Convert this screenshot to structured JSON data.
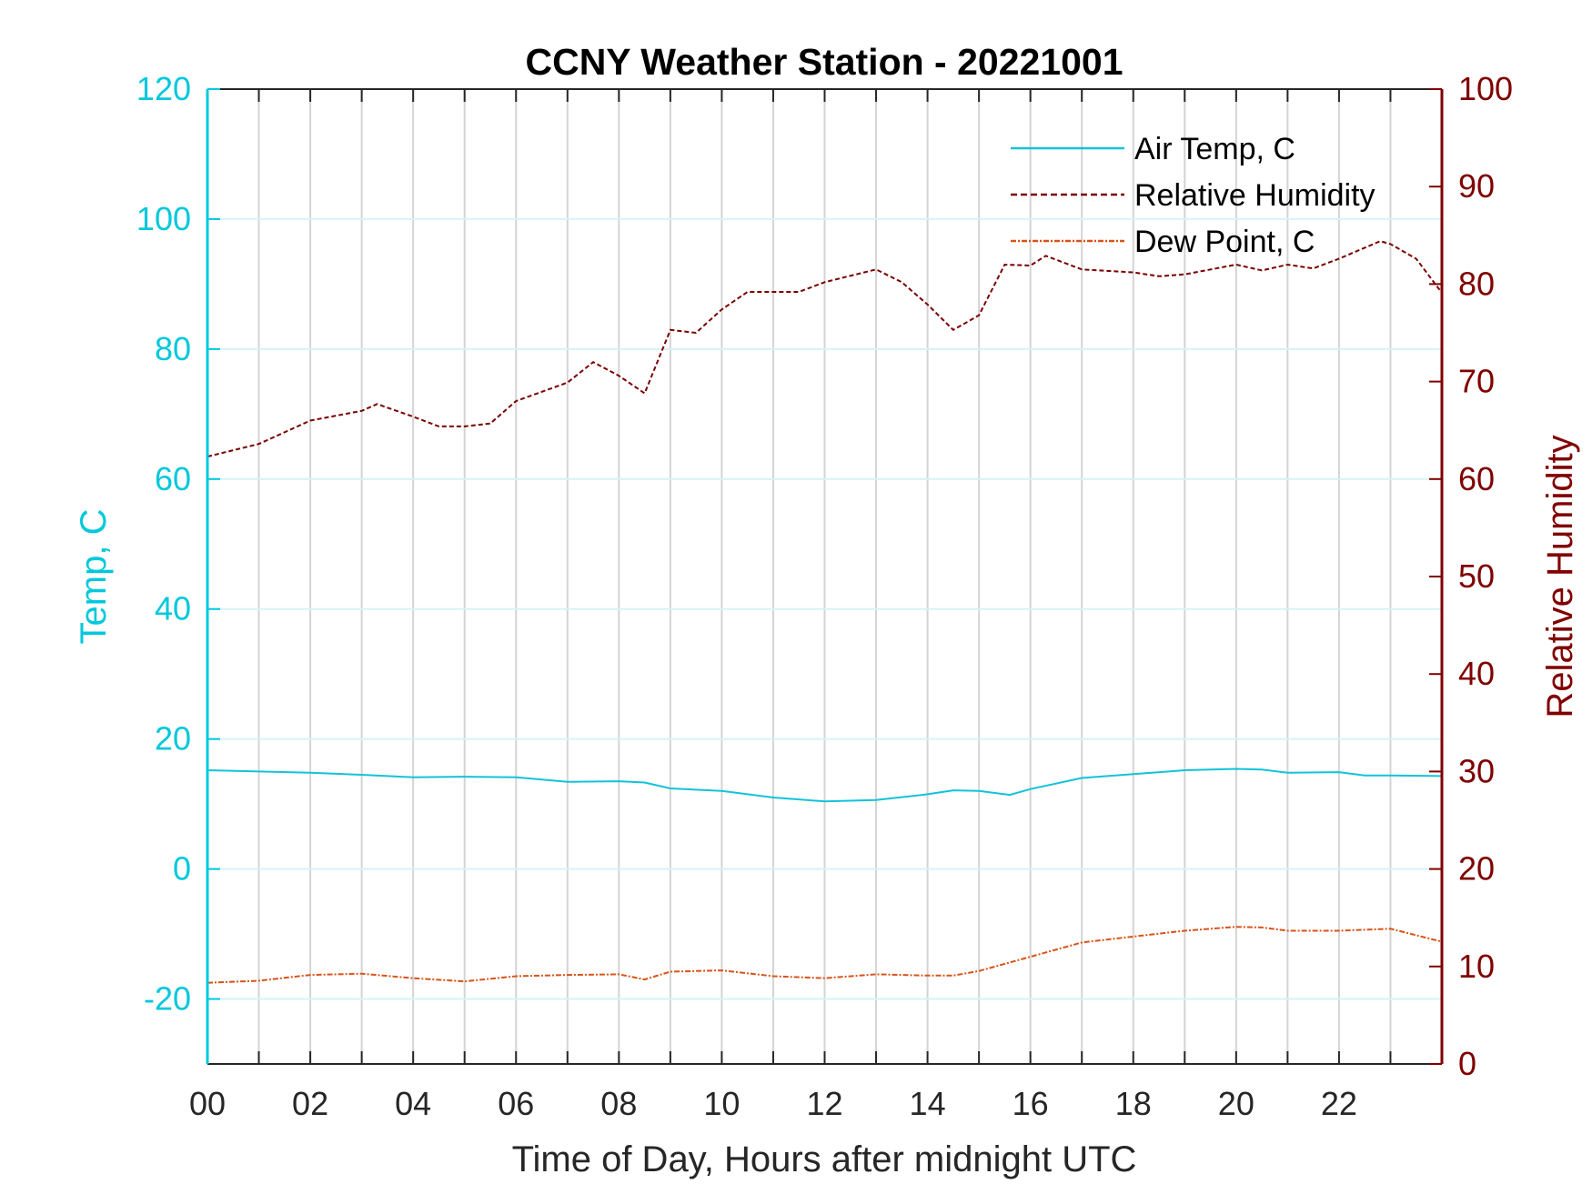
{
  "chart_data": {
    "type": "line",
    "title": "CCNY Weather Station - 20221001",
    "xlabel": "Time of Day, Hours after midnight UTC",
    "ylabel_left": "Temp, C",
    "ylabel_right": "Relative Humidity",
    "xlim": [
      0,
      24
    ],
    "ylim_left": [
      -30,
      120
    ],
    "ylim_right": [
      0,
      100
    ],
    "xticks": [
      0,
      2,
      4,
      6,
      8,
      10,
      12,
      14,
      16,
      18,
      20,
      22
    ],
    "xtick_labels": [
      "00",
      "02",
      "04",
      "06",
      "08",
      "10",
      "12",
      "14",
      "16",
      "18",
      "20",
      "22"
    ],
    "yticks_left": [
      -20,
      0,
      20,
      40,
      60,
      80,
      100,
      120
    ],
    "yticks_right": [
      0,
      10,
      20,
      30,
      40,
      50,
      60,
      70,
      80,
      90,
      100
    ],
    "grid": true,
    "legend_placement": "top-right",
    "colors": {
      "left_axis": "#00C8DC",
      "right_axis": "#800000",
      "temp": "#12C3D9",
      "rh": "#7A0000",
      "dew": "#D95319"
    },
    "series": [
      {
        "name": "Air Temp, C",
        "axis": "left",
        "style": "solid",
        "x": [
          0,
          1,
          2,
          3,
          4,
          5,
          6,
          7,
          8,
          8.5,
          9,
          10,
          11,
          12,
          13,
          14,
          14.5,
          15,
          15.6,
          16,
          17,
          18,
          19,
          20,
          20.5,
          21,
          22,
          22.5,
          23,
          24
        ],
        "y": [
          15.2,
          15,
          14.8,
          14.5,
          14.1,
          14.2,
          14.1,
          13.4,
          13.5,
          13.3,
          12.4,
          12,
          11,
          10.4,
          10.6,
          11.5,
          12.1,
          12,
          11.4,
          12.3,
          14,
          14.6,
          15.2,
          15.4,
          15.3,
          14.8,
          14.9,
          14.4,
          14.4,
          14.3
        ]
      },
      {
        "name": "Relative Humidity",
        "axis": "right",
        "style": "dashed",
        "x": [
          0,
          1,
          2,
          3,
          3.3,
          4,
          4.5,
          5,
          5.5,
          6,
          7,
          7.5,
          8,
          8.5,
          9,
          9.5,
          10,
          10.5,
          11,
          11.5,
          12,
          13,
          13.5,
          14,
          14.5,
          15,
          15.5,
          16,
          16.3,
          17,
          18,
          18.5,
          19,
          20,
          20.5,
          21,
          21.5,
          22,
          22.8,
          23,
          23.5,
          24
        ],
        "y": [
          62.3,
          63.6,
          66,
          67,
          67.7,
          66.4,
          65.4,
          65.4,
          65.7,
          68,
          69.9,
          72,
          70.6,
          68.8,
          75.3,
          75,
          77.4,
          79.2,
          79.2,
          79.2,
          80.2,
          81.5,
          80.2,
          77.9,
          75.3,
          76.8,
          82,
          81.9,
          82.9,
          81.5,
          81.2,
          80.8,
          81,
          82,
          81.4,
          82,
          81.6,
          82.6,
          84.4,
          84.1,
          82.6,
          79.1
        ]
      },
      {
        "name": "Dew Point, C",
        "axis": "left",
        "style": "dashdot",
        "x": [
          0,
          1,
          2,
          3,
          4,
          5,
          6,
          7,
          8,
          8.5,
          9,
          10,
          11,
          12,
          13,
          14,
          14.5,
          15,
          16,
          17,
          18,
          19,
          20,
          20.5,
          21,
          22,
          23,
          24
        ],
        "y": [
          -17.5,
          -17.2,
          -16.3,
          -16.1,
          -16.8,
          -17.3,
          -16.5,
          -16.3,
          -16.2,
          -17,
          -15.8,
          -15.6,
          -16.5,
          -16.8,
          -16.2,
          -16.4,
          -16.4,
          -15.7,
          -13.5,
          -11.3,
          -10.4,
          -9.5,
          -8.9,
          -9,
          -9.5,
          -9.5,
          -9.2,
          -11.2
        ]
      }
    ]
  }
}
